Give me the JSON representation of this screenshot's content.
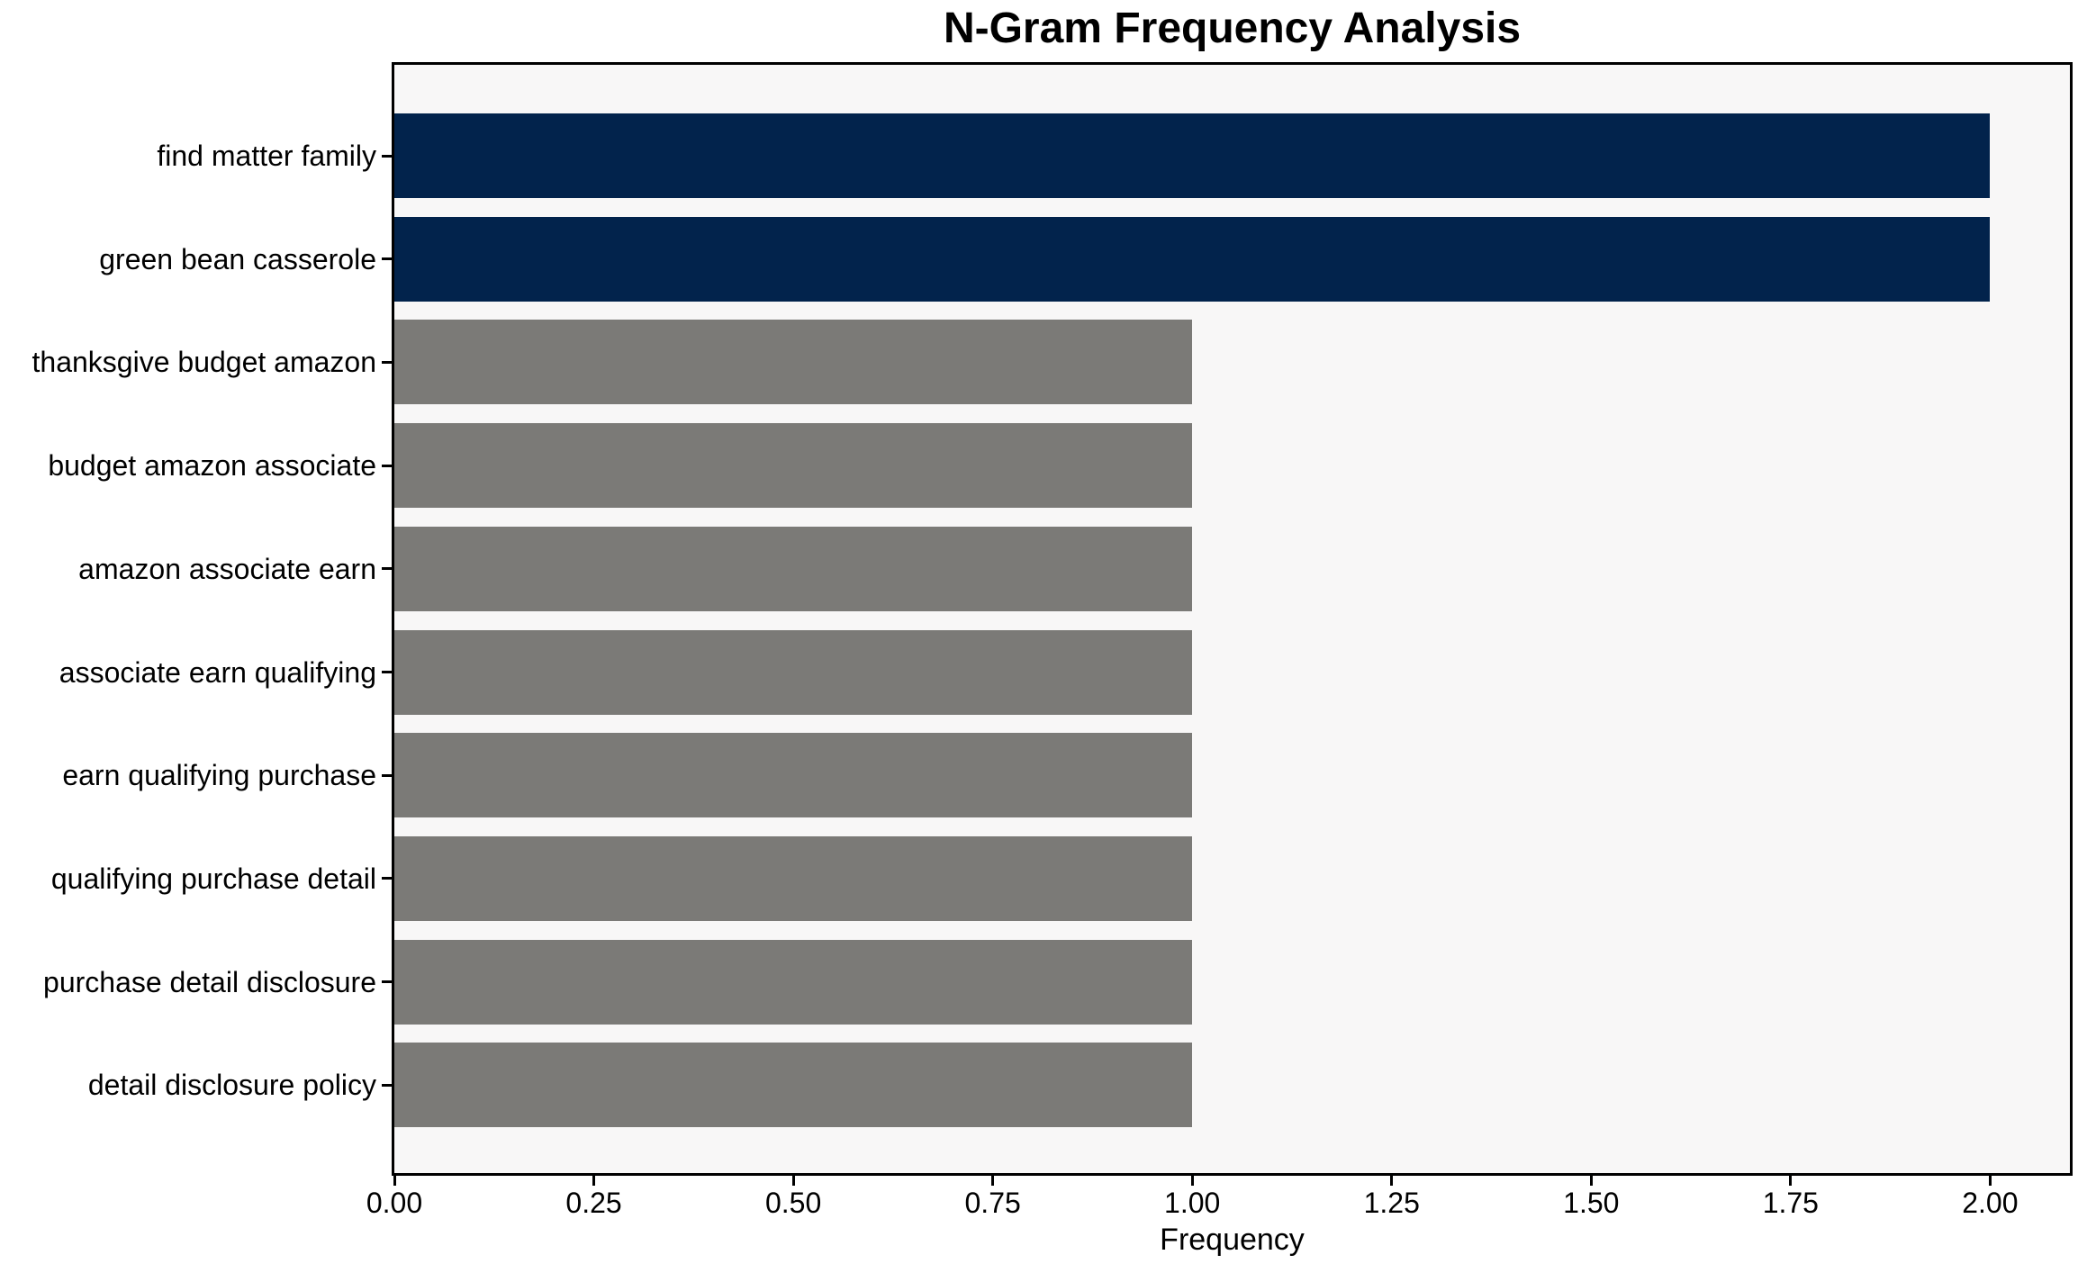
{
  "chart_data": {
    "type": "bar",
    "orientation": "horizontal",
    "title": "N-Gram Frequency Analysis",
    "xlabel": "Frequency",
    "ylabel": "",
    "categories": [
      "find matter family",
      "green bean casserole",
      "thanksgive budget amazon",
      "budget amazon associate",
      "amazon associate earn",
      "associate earn qualifying",
      "earn qualifying purchase",
      "qualifying purchase detail",
      "purchase detail disclosure",
      "detail disclosure policy"
    ],
    "values": [
      2,
      2,
      1,
      1,
      1,
      1,
      1,
      1,
      1,
      1
    ],
    "bar_colors": [
      "#02234c",
      "#02234c",
      "#7b7a77",
      "#7b7a77",
      "#7b7a77",
      "#7b7a77",
      "#7b7a77",
      "#7b7a77",
      "#7b7a77",
      "#7b7a77"
    ],
    "highlight_color": "#02234c",
    "base_color": "#7b7a77",
    "xlim": [
      0,
      2.1
    ],
    "xticks": [
      "0.00",
      "0.25",
      "0.50",
      "0.75",
      "1.00",
      "1.25",
      "1.50",
      "1.75",
      "2.00"
    ],
    "xtick_values": [
      0,
      0.25,
      0.5,
      0.75,
      1.0,
      1.25,
      1.5,
      1.75,
      2.0
    ],
    "grid": false,
    "legend": "none",
    "plot_background": "#f8f7f7",
    "figure_background": "#ffffff",
    "axis_color": "#000000"
  }
}
